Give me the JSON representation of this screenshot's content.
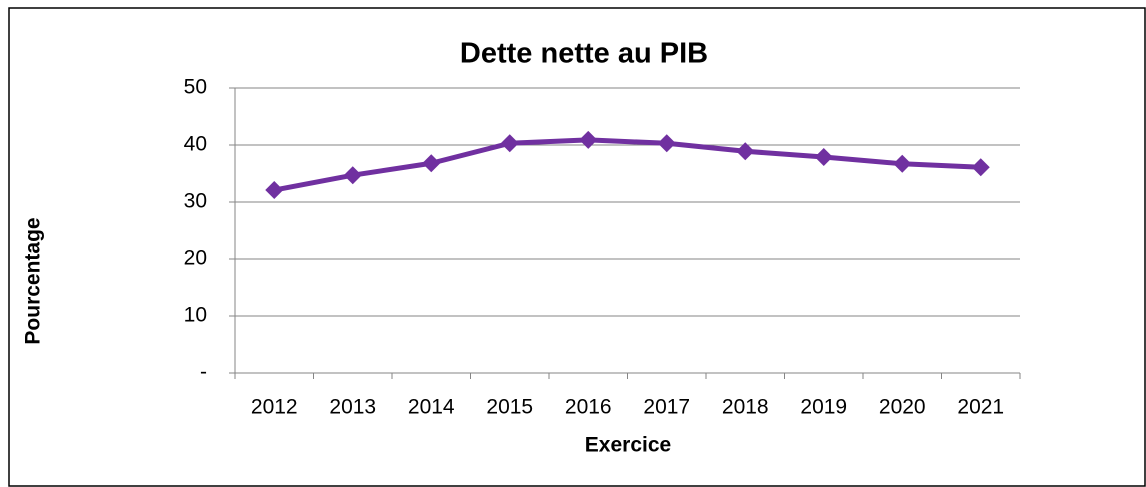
{
  "chart_data": {
    "type": "line",
    "title": "Dette nette au PIB",
    "x_label": "Exercice",
    "y_label": "Pourcentage",
    "categories": [
      "2012",
      "2013",
      "2014",
      "2015",
      "2016",
      "2017",
      "2018",
      "2019",
      "2020",
      "2021"
    ],
    "series": [
      {
        "name": "Dette nette au PIB",
        "color": "#7030a0",
        "values": [
          32.1,
          34.7,
          36.8,
          40.3,
          40.9,
          40.3,
          38.9,
          37.9,
          36.7,
          36.1
        ]
      }
    ],
    "ylim": [
      0,
      50
    ],
    "yticks": [
      {
        "value": 0,
        "label": "-"
      },
      10,
      20,
      30,
      40,
      50
    ],
    "grid": true
  }
}
